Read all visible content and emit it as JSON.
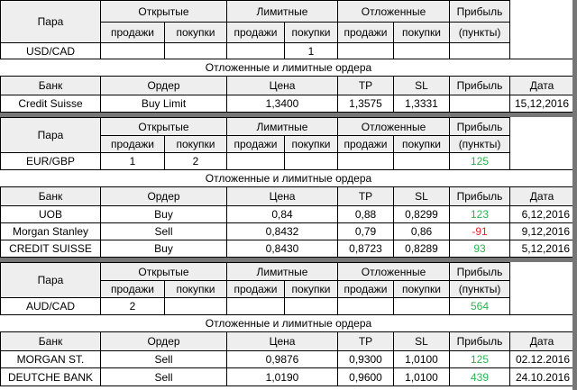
{
  "labels": {
    "pair": "Пара",
    "open": "Открытые",
    "limit": "Лимитные",
    "pending": "Отложенные",
    "profit": "Прибыль",
    "sell": "продажи",
    "buy": "покупки",
    "points": "(пункты)",
    "orders_title": "Отложенные и лимитные ордера",
    "bank": "Банк",
    "order": "Ордер",
    "price": "Цена",
    "tp": "TP",
    "sl": "SL",
    "date": "Дата"
  },
  "sections": [
    {
      "pair": "USD/CAD",
      "open_sell": "",
      "open_buy": "",
      "limit_sell": "",
      "limit_buy": "1",
      "pending_sell": "",
      "pending_buy": "",
      "profit": "",
      "orders": [
        {
          "bank": "Credit Suisse",
          "order": "Buy Limit",
          "price": "1,3400",
          "tp": "1,3575",
          "sl": "1,3331",
          "profit": "",
          "date": "15,12,2016"
        }
      ]
    },
    {
      "pair": "EUR/GBP",
      "open_sell": "1",
      "open_buy": "2",
      "limit_sell": "",
      "limit_buy": "",
      "pending_sell": "",
      "pending_buy": "",
      "profit": "125",
      "orders": [
        {
          "bank": "UOB",
          "order": "Buy",
          "price": "0,84",
          "tp": "0,88",
          "sl": "0,8299",
          "profit": "123",
          "date": "6,12,2016"
        },
        {
          "bank": "Morgan Stanley",
          "order": "Sell",
          "price": "0,8432",
          "tp": "0,79",
          "sl": "0,86",
          "profit": "-91",
          "date": "9,12,2016"
        },
        {
          "bank": "CREDIT SUISSE",
          "order": "Buy",
          "price": "0,8430",
          "tp": "0,8723",
          "sl": "0,8289",
          "profit": "93",
          "date": "5,12,2016"
        }
      ]
    },
    {
      "pair": "AUD/CAD",
      "open_sell": "2",
      "open_buy": "",
      "limit_sell": "",
      "limit_buy": "",
      "pending_sell": "",
      "pending_buy": "",
      "profit": "564",
      "orders": [
        {
          "bank": "MORGAN ST.",
          "order": "Sell",
          "price": "0,9876",
          "tp": "0,9300",
          "sl": "1,0100",
          "profit": "125",
          "date": "02.12.2016"
        },
        {
          "bank": "DEUTCHE BANK",
          "order": "Sell",
          "price": "1,0190",
          "tp": "0,9600",
          "sl": "1,0100",
          "profit": "439",
          "date": "24.10.2016"
        }
      ]
    }
  ],
  "colors": {
    "positive": "#2bb352",
    "negative": "#e8222b",
    "header_bg": "#eeeeee",
    "separator": "#767676"
  }
}
